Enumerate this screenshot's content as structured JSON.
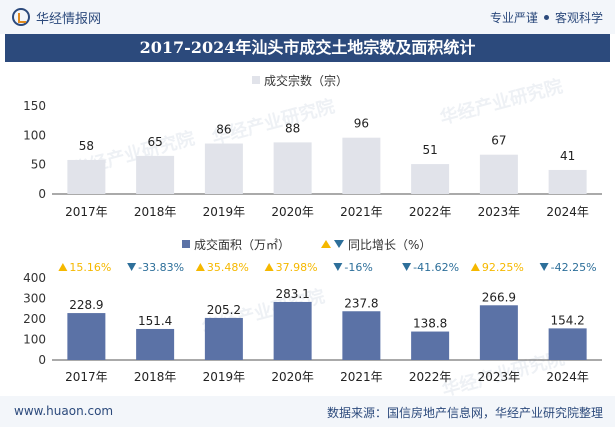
{
  "header": {
    "brand": "华经情报网",
    "slogan_left": "专业严谨",
    "slogan_right": "客观科学",
    "title": "2017-2024年汕头市成交土地宗数及面积统计"
  },
  "footer": {
    "site": "www.huaon.com",
    "source": "数据来源：国信房地产信息网，华经产业研究院整理"
  },
  "watermark": "华经产业研究院",
  "colors": {
    "header_band": "#2c4a7c",
    "count_bar": "#e1e3ea",
    "area_bar": "#5b72a6",
    "up": "#f5b800",
    "down": "#2d6f9a"
  },
  "chart_data": [
    {
      "type": "bar",
      "title": "",
      "legend": [
        "成交宗数（宗）"
      ],
      "categories": [
        "2017年",
        "2018年",
        "2019年",
        "2020年",
        "2021年",
        "2022年",
        "2023年",
        "2024年"
      ],
      "series": [
        {
          "name": "成交宗数（宗）",
          "values": [
            58,
            65,
            86,
            88,
            96,
            51,
            67,
            41
          ]
        }
      ],
      "ylim": [
        0,
        150
      ],
      "yticks": [
        "0",
        "50",
        "100",
        "150"
      ],
      "grid": false,
      "legend_position": "top-center"
    },
    {
      "type": "bar",
      "title": "",
      "legend": [
        "成交面积（万㎡）",
        "同比增长（%）"
      ],
      "categories": [
        "2017年",
        "2018年",
        "2019年",
        "2020年",
        "2021年",
        "2022年",
        "2023年",
        "2024年"
      ],
      "series": [
        {
          "name": "成交面积（万㎡）",
          "values": [
            228.9,
            151.4,
            205.2,
            283.1,
            237.8,
            138.8,
            266.9,
            154.2
          ]
        },
        {
          "name": "同比增长（%）",
          "values": [
            "15.16%",
            "-33.83%",
            "35.48%",
            "37.98%",
            "-16%",
            "-41.62%",
            "92.25%",
            "-42.25%"
          ],
          "direction": [
            "up",
            "down",
            "up",
            "up",
            "down",
            "down",
            "up",
            "down"
          ]
        }
      ],
      "ylim": [
        0,
        400
      ],
      "yticks": [
        "0",
        "100",
        "200",
        "300",
        "400"
      ],
      "grid": false,
      "legend_position": "top-center"
    }
  ]
}
